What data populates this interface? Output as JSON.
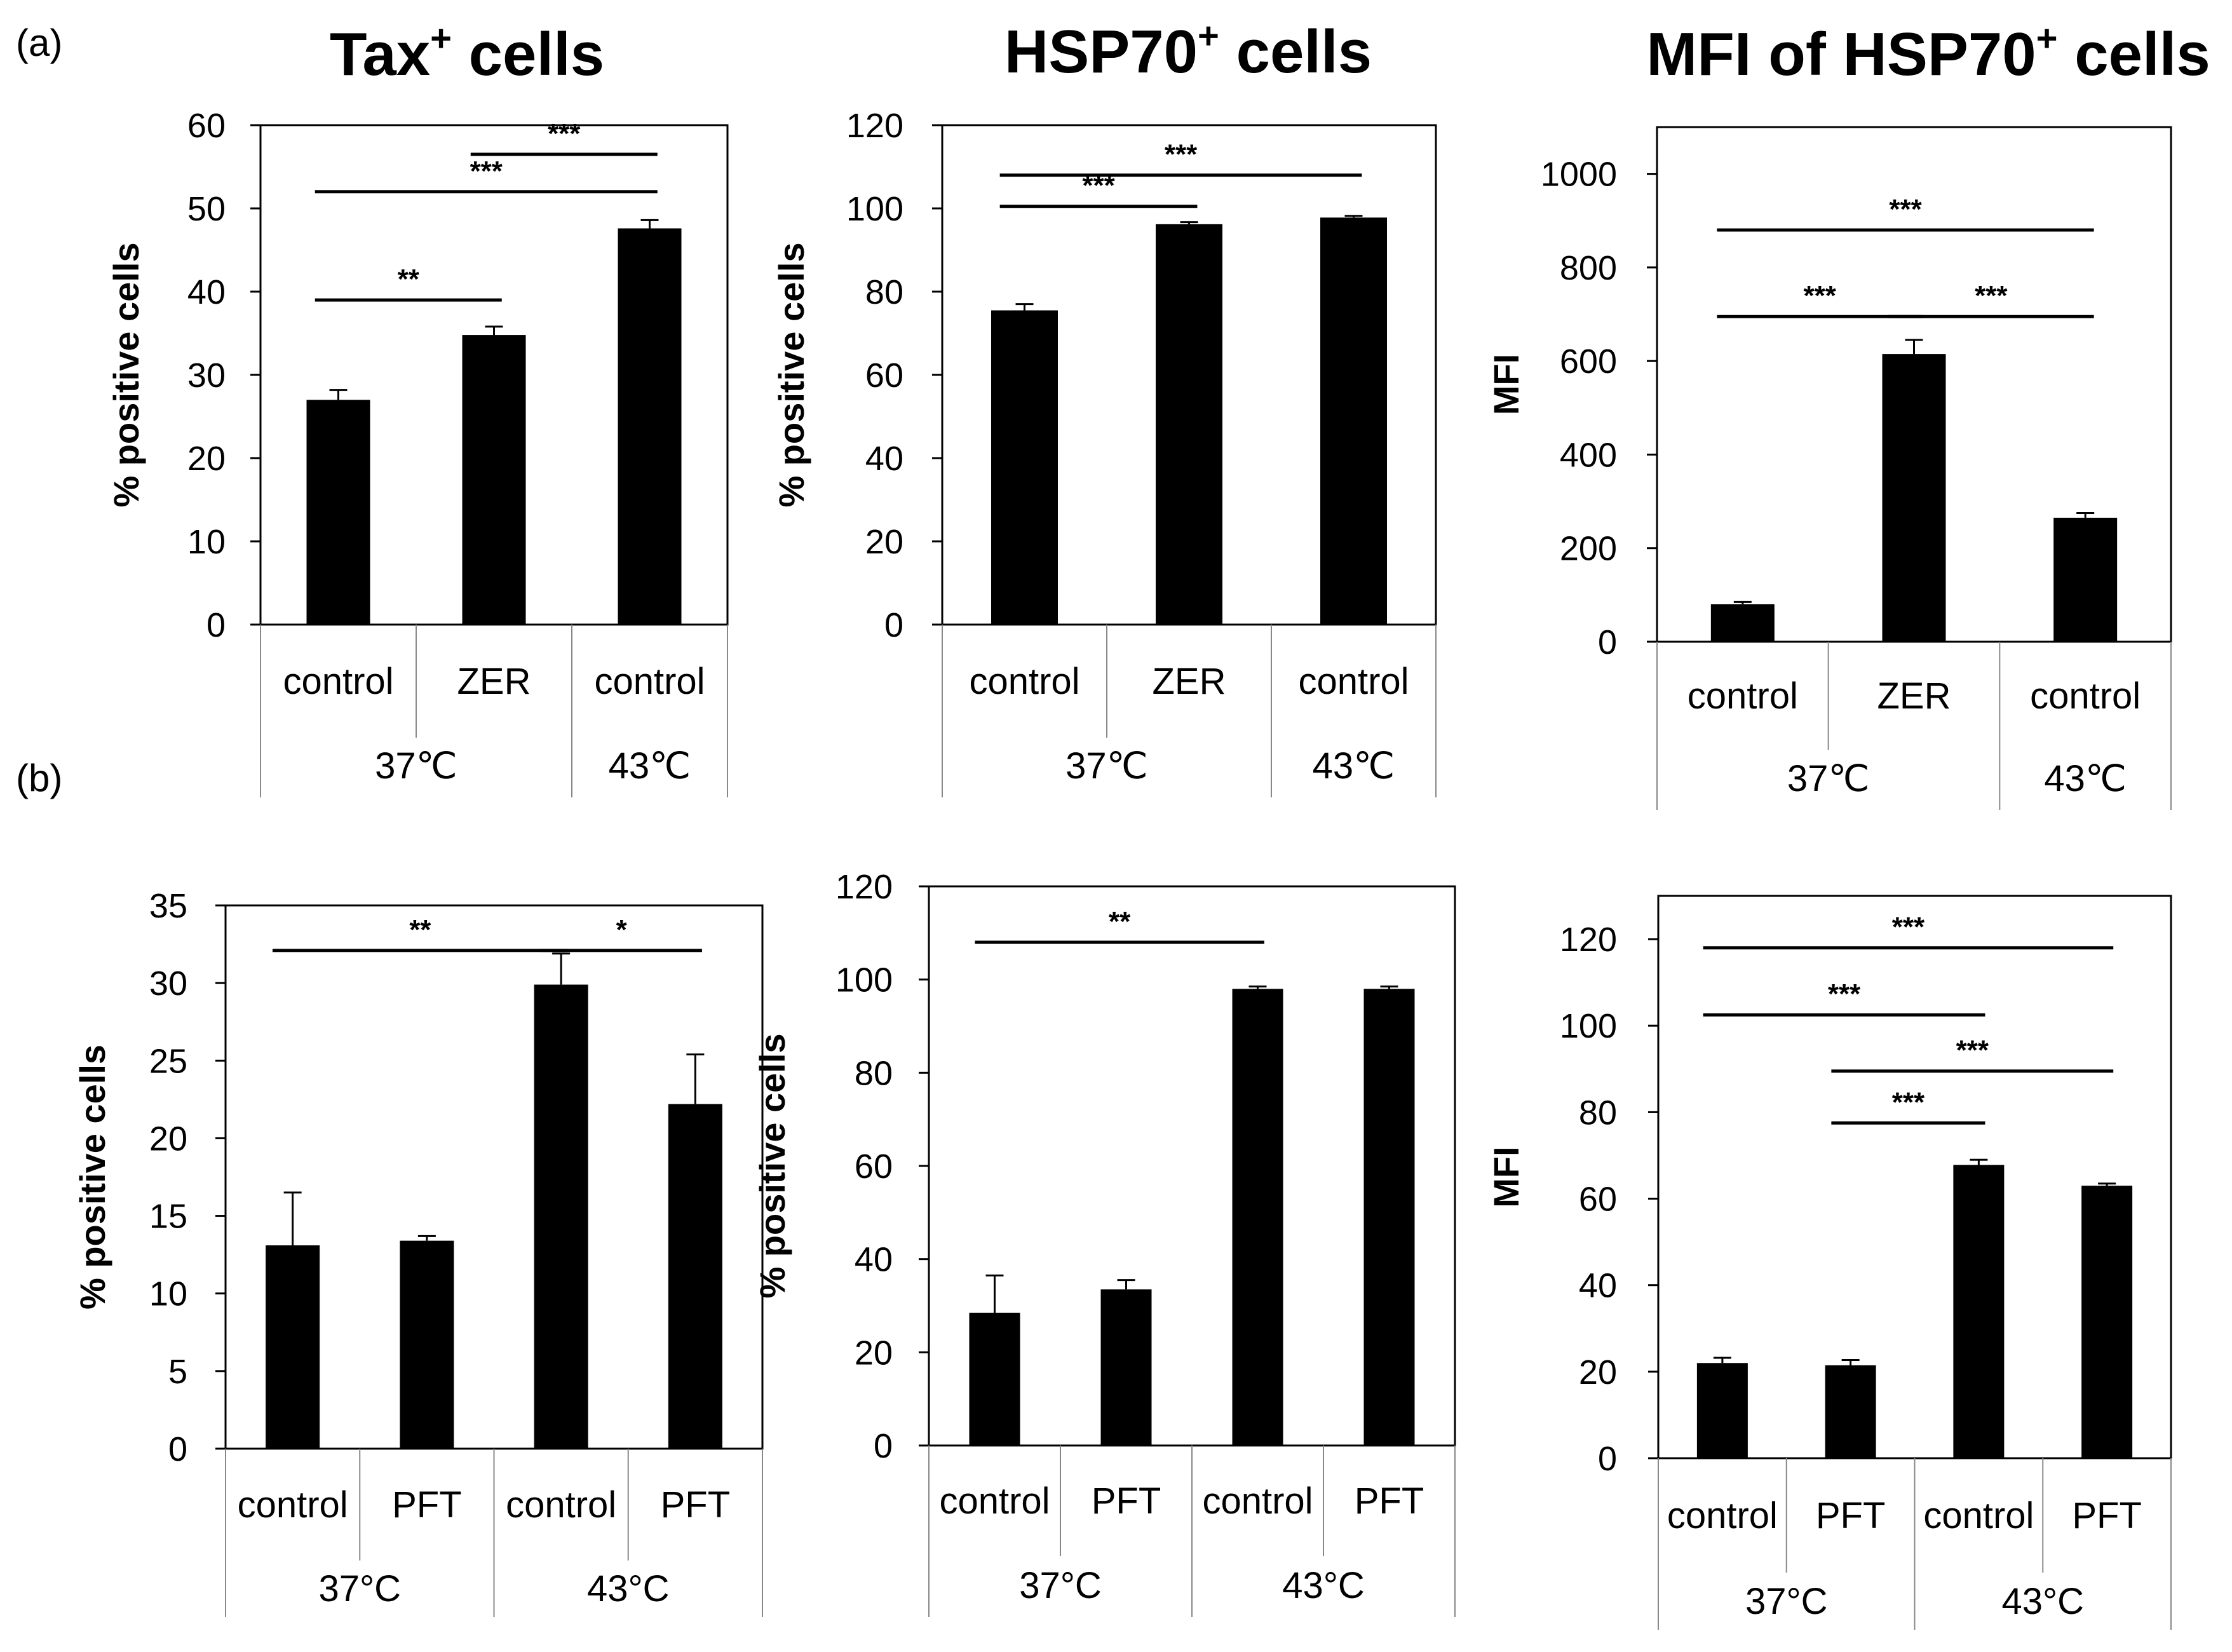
{
  "panel_labels": {
    "a": "(a)",
    "b": "(b)"
  },
  "column_titles": [
    {
      "main": "Tax",
      "sup": "+",
      "rest": " cells"
    },
    {
      "main": "HSP70",
      "sup": "+",
      "rest": " cells"
    },
    {
      "main": "MFI of HSP70",
      "sup": "+",
      "rest": " cells"
    }
  ],
  "colors": {
    "bar": "#000000",
    "axis": "#000000",
    "background": "#ffffff"
  },
  "chart_data": [
    {
      "id": "a1",
      "type": "bar",
      "ylabel": "% positive cells",
      "ylim": [
        0,
        60
      ],
      "yticks": [
        "0",
        "10",
        "20",
        "30",
        "40",
        "50",
        "60"
      ],
      "categories": [
        "control",
        "ZER",
        "control"
      ],
      "groups": [
        {
          "label": "37℃",
          "span": 2
        },
        {
          "label": "43℃",
          "span": 1
        }
      ],
      "values": [
        27,
        34.8,
        47.6
      ],
      "errors": [
        1.2,
        1.0,
        1.0
      ],
      "significance": [
        {
          "from": 0,
          "to": 1,
          "y": 39,
          "label": "**"
        },
        {
          "from": 0,
          "to": 2,
          "y": 52,
          "label": "***"
        },
        {
          "from": 1,
          "to": 2,
          "y": 56.5,
          "label": "***"
        }
      ]
    },
    {
      "id": "a2",
      "type": "bar",
      "ylabel": "% positive cells",
      "ylim": [
        0,
        120
      ],
      "yticks": [
        "0",
        "20",
        "40",
        "60",
        "80",
        "100",
        "120"
      ],
      "categories": [
        "control",
        "ZER",
        "control"
      ],
      "groups": [
        {
          "label": "37℃",
          "span": 2
        },
        {
          "label": "43℃",
          "span": 1
        }
      ],
      "values": [
        75.5,
        96.2,
        97.8
      ],
      "errors": [
        1.5,
        0.5,
        0.4
      ],
      "significance": [
        {
          "from": 0,
          "to": 1,
          "y": 100.5,
          "label": "***"
        },
        {
          "from": 0,
          "to": 2,
          "y": 108,
          "label": "***"
        }
      ]
    },
    {
      "id": "a3",
      "type": "bar",
      "ylabel": "MFI",
      "ylim": [
        0,
        1100
      ],
      "yticks": [
        "0",
        "200",
        "400",
        "600",
        "800",
        "1000"
      ],
      "categories": [
        "control",
        "ZER",
        "control"
      ],
      "groups": [
        {
          "label": "37℃",
          "span": 2
        },
        {
          "label": "43℃",
          "span": 1
        }
      ],
      "values": [
        80,
        615,
        265
      ],
      "errors": [
        5,
        30,
        10
      ],
      "significance": [
        {
          "from": 0,
          "to": 2,
          "y": 880,
          "label": "***"
        },
        {
          "from": 0,
          "to": 1,
          "y": 695,
          "label": "***"
        },
        {
          "from": 1,
          "to": 2,
          "y": 695,
          "label": "***"
        }
      ]
    },
    {
      "id": "b1",
      "type": "bar",
      "ylabel": "% positive cells",
      "ylim": [
        0,
        35
      ],
      "yticks": [
        "0",
        "5",
        "10",
        "15",
        "20",
        "25",
        "30",
        "35"
      ],
      "categories": [
        "control",
        "PFT",
        "control",
        "PFT"
      ],
      "groups": [
        {
          "label": "37°C",
          "span": 2
        },
        {
          "label": "43°C",
          "span": 2
        }
      ],
      "values": [
        13.1,
        13.4,
        29.9,
        22.2
      ],
      "errors": [
        3.4,
        0.3,
        2.0,
        3.2
      ],
      "significance": [
        {
          "from": 0,
          "to": 2,
          "y": 32.1,
          "label": "**"
        },
        {
          "from": 2,
          "to": 3,
          "y": 32.1,
          "label": "*"
        }
      ]
    },
    {
      "id": "b2",
      "type": "bar",
      "ylabel": "% positive cells",
      "ylim": [
        0,
        120
      ],
      "yticks": [
        "0",
        "20",
        "40",
        "60",
        "80",
        "100",
        "120"
      ],
      "categories": [
        "control",
        "PFT",
        "control",
        "PFT"
      ],
      "groups": [
        {
          "label": "37°C",
          "span": 2
        },
        {
          "label": "43°C",
          "span": 2
        }
      ],
      "values": [
        28.5,
        33.5,
        98,
        98
      ],
      "errors": [
        8,
        2,
        0.5,
        0.5
      ],
      "significance": [
        {
          "from": 0,
          "to": 2,
          "y": 108,
          "label": "**"
        }
      ]
    },
    {
      "id": "b3",
      "type": "bar",
      "ylabel": "MFI",
      "ylim": [
        0,
        130
      ],
      "yticks": [
        "0",
        "20",
        "40",
        "60",
        "80",
        "100",
        "120"
      ],
      "categories": [
        "control",
        "PFT",
        "control",
        "PFT"
      ],
      "groups": [
        {
          "label": "37°C",
          "span": 2
        },
        {
          "label": "43°C",
          "span": 2
        }
      ],
      "values": [
        22,
        21.5,
        67.8,
        63
      ],
      "errors": [
        1.2,
        1.2,
        1.2,
        0.5
      ],
      "significance": [
        {
          "from": 0,
          "to": 3,
          "y": 118,
          "label": "***"
        },
        {
          "from": 0,
          "to": 2,
          "y": 102.5,
          "label": "***"
        },
        {
          "from": 1,
          "to": 3,
          "y": 89.5,
          "label": "***"
        },
        {
          "from": 1,
          "to": 2,
          "y": 77.5,
          "label": "***"
        }
      ]
    }
  ]
}
